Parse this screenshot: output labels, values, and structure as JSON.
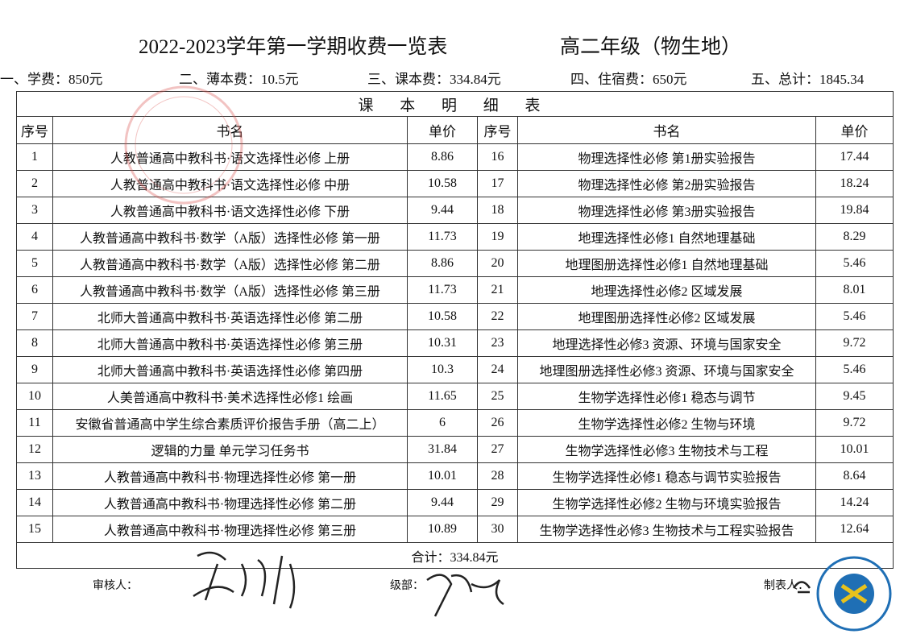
{
  "header": {
    "title": "2022-2023学年第一学期收费一览表",
    "grade": "高二年级（物生地）"
  },
  "fees": [
    "一、学费：850元",
    "二、薄本费：10.5元",
    "三、课本费：334.84元",
    "四、住宿费：650元",
    "五、总计：1845.34"
  ],
  "table": {
    "title": "课 本 明 细 表",
    "columns": [
      "序号",
      "书名",
      "单价",
      "序号",
      "书名",
      "单价"
    ],
    "rows": [
      [
        "1",
        "人教普通高中教科书·语文选择性必修 上册",
        "8.86",
        "16",
        "物理选择性必修 第1册实验报告",
        "17.44"
      ],
      [
        "2",
        "人教普通高中教科书·语文选择性必修 中册",
        "10.58",
        "17",
        "物理选择性必修 第2册实验报告",
        "18.24"
      ],
      [
        "3",
        "人教普通高中教科书·语文选择性必修 下册",
        "9.44",
        "18",
        "物理选择性必修 第3册实验报告",
        "19.84"
      ],
      [
        "4",
        "人教普通高中教科书·数学（A版）选择性必修 第一册",
        "11.73",
        "19",
        "地理选择性必修1 自然地理基础",
        "8.29"
      ],
      [
        "5",
        "人教普通高中教科书·数学（A版）选择性必修 第二册",
        "8.86",
        "20",
        "地理图册选择性必修1 自然地理基础",
        "5.46"
      ],
      [
        "6",
        "人教普通高中教科书·数学（A版）选择性必修 第三册",
        "11.73",
        "21",
        "地理选择性必修2 区域发展",
        "8.01"
      ],
      [
        "7",
        "北师大普通高中教科书·英语选择性必修 第二册",
        "10.58",
        "22",
        "地理图册选择性必修2 区域发展",
        "5.46"
      ],
      [
        "8",
        "北师大普通高中教科书·英语选择性必修 第三册",
        "10.31",
        "23",
        "地理选择性必修3 资源、环境与国家安全",
        "9.72"
      ],
      [
        "9",
        "北师大普通高中教科书·英语选择性必修 第四册",
        "10.3",
        "24",
        "地理图册选择性必修3 资源、环境与国家安全",
        "5.46"
      ],
      [
        "10",
        "人美普通高中教科书·美术选择性必修1 绘画",
        "11.65",
        "25",
        "生物学选择性必修1 稳态与调节",
        "9.45"
      ],
      [
        "11",
        "安徽省普通高中学生综合素质评价报告手册（高二上）",
        "6",
        "26",
        "生物学选择性必修2 生物与环境",
        "9.72"
      ],
      [
        "12",
        "逻辑的力量 单元学习任务书",
        "31.84",
        "27",
        "生物学选择性必修3 生物技术与工程",
        "10.01"
      ],
      [
        "13",
        "人教普通高中教科书·物理选择性必修 第一册",
        "10.01",
        "28",
        "生物学选择性必修1 稳态与调节实验报告",
        "8.64"
      ],
      [
        "14",
        "人教普通高中教科书·物理选择性必修 第二册",
        "9.44",
        "29",
        "生物学选择性必修2 生物与环境实验报告",
        "14.24"
      ],
      [
        "15",
        "人教普通高中教科书·物理选择性必修 第三册",
        "10.89",
        "30",
        "生物学选择性必修3 生物技术与工程实验报告",
        "12.64"
      ]
    ],
    "total": "合计：334.84元"
  },
  "footer": {
    "reviewer": "审核人：",
    "department": "级部：",
    "maker": "制表人："
  }
}
